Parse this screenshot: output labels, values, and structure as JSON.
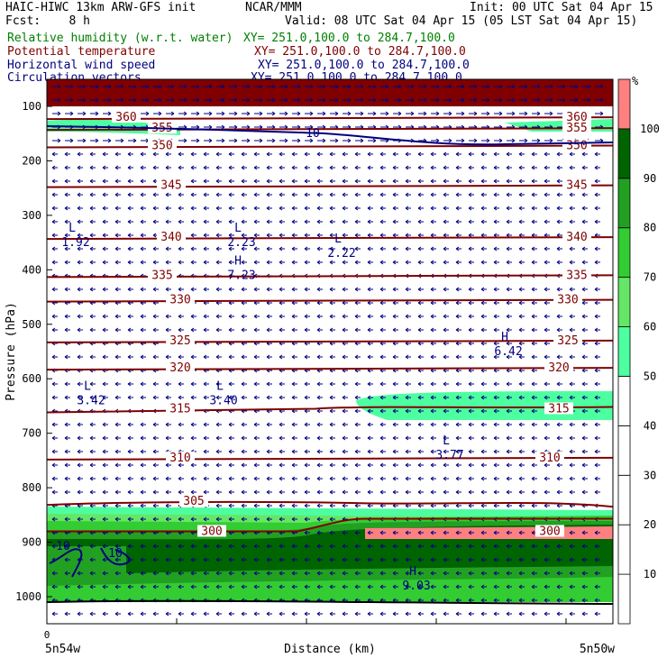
{
  "header": {
    "title_left": "HAIC-HIWC 13km ARW-GFS init",
    "org": "NCAR/MMM",
    "init": "Init: 00 UTC Sat 04 Apr 15",
    "fcst": "Fcst:    8 h",
    "valid": "Valid: 08 UTC Sat 04 Apr 15 (05 LST Sat 04 Apr 15)",
    "fields": [
      {
        "label": "Relative humidity (w.r.t. water)",
        "xy": "XY= 251.0,100.0 to 284.7,100.0",
        "color": "#008000"
      },
      {
        "label": "Potential temperature",
        "xy": "XY= 251.0,100.0 to 284.7,100.0",
        "color": "#800000"
      },
      {
        "label": "Horizontal wind speed",
        "xy": "XY= 251.0,100.0 to 284.7,100.0",
        "color": "#000080"
      },
      {
        "label": "Circulation vectors",
        "xy": "XY= 251.0,100.0 to 284.7,100.0",
        "color": "#000080"
      }
    ]
  },
  "chart_data": {
    "type": "contour-cross-section",
    "ylabel": "Pressure (hPa)",
    "xlabel": "Distance (km)",
    "x_tick": "0",
    "x_start_label": "5n54w",
    "x_end_label": "5n50w",
    "y_ticks": [
      100,
      200,
      300,
      400,
      500,
      600,
      700,
      800,
      900,
      1000
    ],
    "ylim": [
      1050,
      70
    ],
    "colorbar": {
      "unit": "%",
      "levels": [
        10,
        20,
        30,
        40,
        50,
        60,
        70,
        80,
        90,
        100
      ],
      "colors": [
        "#ffffff",
        "#ffffff",
        "#ffffff",
        "#ffffff",
        "#ffffff",
        "#4dffa0",
        "#66e666",
        "#33cc33",
        "#22a022",
        "#006400",
        "#ff8080"
      ]
    },
    "theta_lines": [
      {
        "label": "360",
        "p": 120
      },
      {
        "label": "355",
        "p": 140
      },
      {
        "label": "350",
        "p": 172
      },
      {
        "label": "345",
        "p": 245
      },
      {
        "label": "340",
        "p": 340
      },
      {
        "label": "335",
        "p": 410
      },
      {
        "label": "330",
        "p": 455
      },
      {
        "label": "325",
        "p": 530
      },
      {
        "label": "320",
        "p": 580
      },
      {
        "label": "315",
        "p": 655
      },
      {
        "label": "310",
        "p": 745
      },
      {
        "label": "305",
        "p": 825
      },
      {
        "label": "300",
        "p": 880
      }
    ],
    "wind_contours": [
      {
        "label": "10",
        "p": 148
      },
      {
        "label": "10",
        "p": 920
      },
      {
        "label": "10",
        "p": 920
      }
    ],
    "extrema": [
      {
        "type": "L",
        "value": "1.92",
        "p": 340
      },
      {
        "type": "L",
        "value": "2.23",
        "p": 340
      },
      {
        "type": "L",
        "value": "2.22",
        "p": 360
      },
      {
        "type": "H",
        "value": "7.23",
        "p": 400
      },
      {
        "type": "H",
        "value": "6.42",
        "p": 540
      },
      {
        "type": "L",
        "value": "3.42",
        "p": 630
      },
      {
        "type": "L",
        "value": "3.40",
        "p": 630
      },
      {
        "type": "L",
        "value": "3.77",
        "p": 730
      },
      {
        "type": "H",
        "value": "9.03",
        "p": 970
      }
    ]
  }
}
